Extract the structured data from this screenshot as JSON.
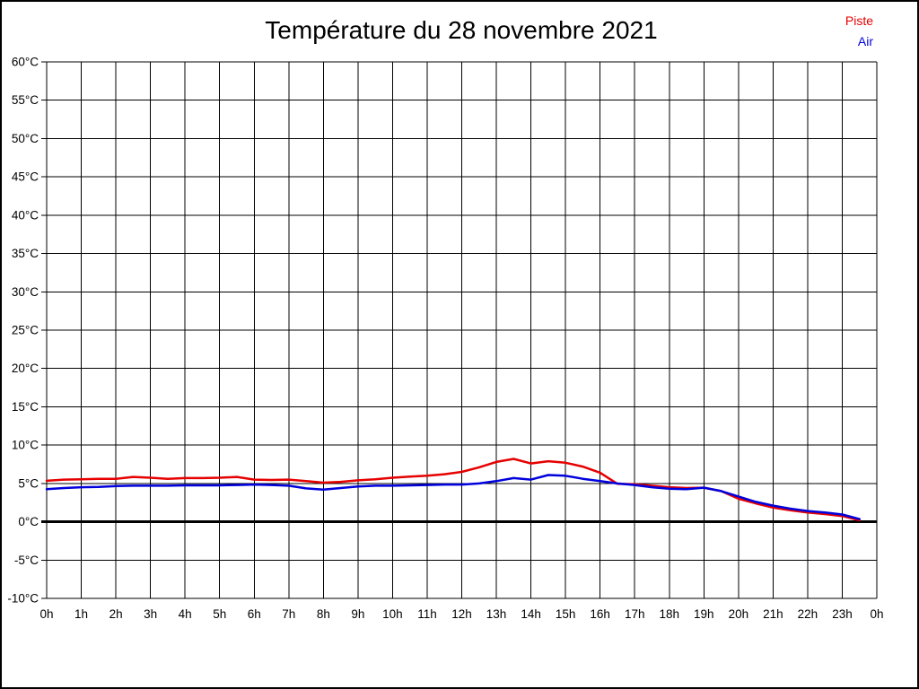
{
  "title": "Température du 28 novembre 2021",
  "legend": [
    {
      "label": "Piste",
      "color": "#e60000"
    },
    {
      "label": "Air",
      "color": "#0000dd"
    }
  ],
  "colors": {
    "piste": "#e60000",
    "air": "#0000dd",
    "grid": "#000000",
    "background": "#ffffff"
  },
  "chart_data": {
    "type": "line",
    "title": "Température du 28 novembre 2021",
    "xlabel": "",
    "ylabel": "",
    "xlim": [
      0,
      24
    ],
    "ylim": [
      -10,
      60
    ],
    "grid": true,
    "legend_position": "top-right",
    "zero_line_value": 0,
    "x_tick_values": [
      0,
      1,
      2,
      3,
      4,
      5,
      6,
      7,
      8,
      9,
      10,
      11,
      12,
      13,
      14,
      15,
      16,
      17,
      18,
      19,
      20,
      21,
      22,
      23,
      24
    ],
    "x_tick_labels": [
      "0h",
      "1h",
      "2h",
      "3h",
      "4h",
      "5h",
      "6h",
      "7h",
      "8h",
      "9h",
      "10h",
      "11h",
      "12h",
      "13h",
      "14h",
      "15h",
      "16h",
      "17h",
      "18h",
      "19h",
      "20h",
      "21h",
      "22h",
      "23h",
      "0h"
    ],
    "y_tick_values": [
      60,
      55,
      50,
      45,
      40,
      35,
      30,
      25,
      20,
      15,
      10,
      5,
      0,
      -5,
      -10
    ],
    "y_tick_labels": [
      "60°C",
      "55°C",
      "50°C",
      "45°C",
      "40°C",
      "35°C",
      "30°C",
      "25°C",
      "20°C",
      "15°C",
      "10°C",
      "5°C",
      "0°C",
      "-5°C",
      "-10°C"
    ],
    "x": [
      0,
      0.5,
      1,
      1.5,
      2,
      2.5,
      3,
      3.5,
      4,
      4.5,
      5,
      5.5,
      6,
      6.5,
      7,
      7.5,
      8,
      8.5,
      9,
      9.5,
      10,
      10.5,
      11,
      11.5,
      12,
      12.5,
      13,
      13.5,
      14,
      14.5,
      15,
      15.5,
      16,
      16.5,
      17,
      17.5,
      18,
      18.5,
      19,
      19.5,
      20,
      20.5,
      21,
      21.5,
      22,
      22.5,
      23,
      23.5
    ],
    "series": [
      {
        "name": "Piste",
        "color": "#e60000",
        "values": [
          5.35,
          5.5,
          5.55,
          5.6,
          5.6,
          5.85,
          5.75,
          5.6,
          5.7,
          5.7,
          5.75,
          5.85,
          5.5,
          5.45,
          5.5,
          5.3,
          5.1,
          5.2,
          5.4,
          5.55,
          5.75,
          5.9,
          6.0,
          6.2,
          6.5,
          7.1,
          7.8,
          8.2,
          7.6,
          7.9,
          7.7,
          7.2,
          6.4,
          4.95,
          4.9,
          4.7,
          4.5,
          4.4,
          4.45,
          4.0,
          3.0,
          2.4,
          1.85,
          1.5,
          1.2,
          1.0,
          0.75,
          0.2
        ]
      },
      {
        "name": "Air",
        "color": "#0000dd",
        "values": [
          4.25,
          4.4,
          4.5,
          4.55,
          4.65,
          4.7,
          4.7,
          4.7,
          4.75,
          4.75,
          4.75,
          4.8,
          4.85,
          4.8,
          4.7,
          4.35,
          4.2,
          4.4,
          4.6,
          4.7,
          4.7,
          4.75,
          4.8,
          4.85,
          4.85,
          5.0,
          5.3,
          5.7,
          5.5,
          6.1,
          6.0,
          5.6,
          5.3,
          5.0,
          4.8,
          4.5,
          4.3,
          4.25,
          4.45,
          4.0,
          3.3,
          2.6,
          2.1,
          1.7,
          1.4,
          1.2,
          0.95,
          0.35
        ]
      }
    ]
  }
}
